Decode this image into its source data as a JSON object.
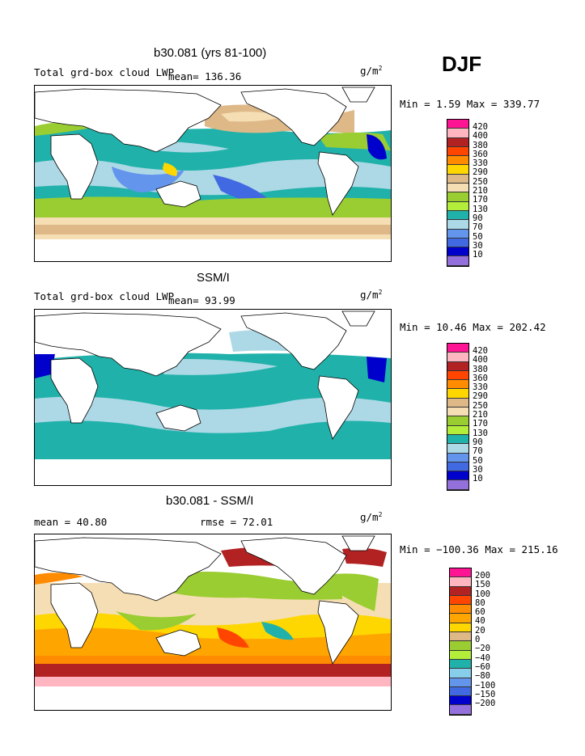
{
  "season": "DJF",
  "panels": [
    {
      "title": "b30.081 (yrs 81-100)",
      "variable": "Total grd-box cloud LWP",
      "mean_label": "mean=",
      "mean_value": "136.36",
      "units": "g/m",
      "units_exp": "2",
      "minmax": "Min =    1.59 Max = 339.77",
      "colorbar_labels": [
        "420",
        "400",
        "380",
        "360",
        "330",
        "290",
        "250",
        "210",
        "170",
        "130",
        "90",
        "70",
        "50",
        "30",
        "10"
      ]
    },
    {
      "title": "SSM/I",
      "variable": "Total grd-box cloud LWP",
      "mean_label": "mean=",
      "mean_value": "93.99",
      "units": "g/m",
      "units_exp": "2",
      "minmax": "Min =  10.46 Max = 202.42",
      "colorbar_labels": [
        "420",
        "400",
        "380",
        "360",
        "330",
        "290",
        "250",
        "210",
        "170",
        "130",
        "90",
        "70",
        "50",
        "30",
        "10"
      ]
    },
    {
      "title": "b30.081 - SSM/I",
      "mean_text": "mean =   40.80",
      "rmse_text": "rmse =   72.01",
      "units": "g/m",
      "units_exp": "2",
      "minmax": "Min = −100.36 Max = 215.16",
      "colorbar_labels": [
        "200",
        "150",
        "100",
        "80",
        "60",
        "40",
        "20",
        "0",
        "−20",
        "−40",
        "−60",
        "−80",
        "−100",
        "−150",
        "−200"
      ]
    }
  ],
  "colors": {
    "scale_abs": [
      "#ff1493",
      "#ffb6c1",
      "#b22222",
      "#ff4500",
      "#ff8c00",
      "#ffd700",
      "#deb887",
      "#f5deb3",
      "#9acd32",
      "#b3ee3a",
      "#20b2aa",
      "#add8e6",
      "#6495ed",
      "#4169e1",
      "#0000cd",
      "#9370db"
    ],
    "scale_diff": [
      "#ff1493",
      "#ffb6c1",
      "#b22222",
      "#ff4500",
      "#ff8c00",
      "#ffa500",
      "#ffd700",
      "#deb887",
      "#f5deb3",
      "#9acd32",
      "#b3ee3a",
      "#20b2aa",
      "#87ceeb",
      "#6495ed",
      "#4169e1",
      "#0000cd",
      "#9370db"
    ]
  },
  "chart_data": [
    {
      "type": "heatmap",
      "title": "b30.081 (yrs 81-100)",
      "subtitle": "Total grd-box cloud LWP",
      "mean": 136.36,
      "min": 1.59,
      "max": 339.77,
      "units": "g/m2",
      "levels": [
        10,
        30,
        50,
        70,
        90,
        130,
        170,
        210,
        250,
        290,
        330,
        360,
        380,
        400,
        420
      ]
    },
    {
      "type": "heatmap",
      "title": "SSM/I",
      "subtitle": "Total grd-box cloud LWP",
      "mean": 93.99,
      "min": 10.46,
      "max": 202.42,
      "units": "g/m2",
      "levels": [
        10,
        30,
        50,
        70,
        90,
        130,
        170,
        210,
        250,
        290,
        330,
        360,
        380,
        400,
        420
      ]
    },
    {
      "type": "heatmap",
      "title": "b30.081 - SSM/I",
      "mean": 40.8,
      "rmse": 72.01,
      "min": -100.36,
      "max": 215.16,
      "units": "g/m2",
      "levels": [
        -200,
        -150,
        -100,
        -80,
        -60,
        -40,
        -20,
        0,
        20,
        40,
        60,
        80,
        100,
        150,
        200
      ]
    }
  ]
}
